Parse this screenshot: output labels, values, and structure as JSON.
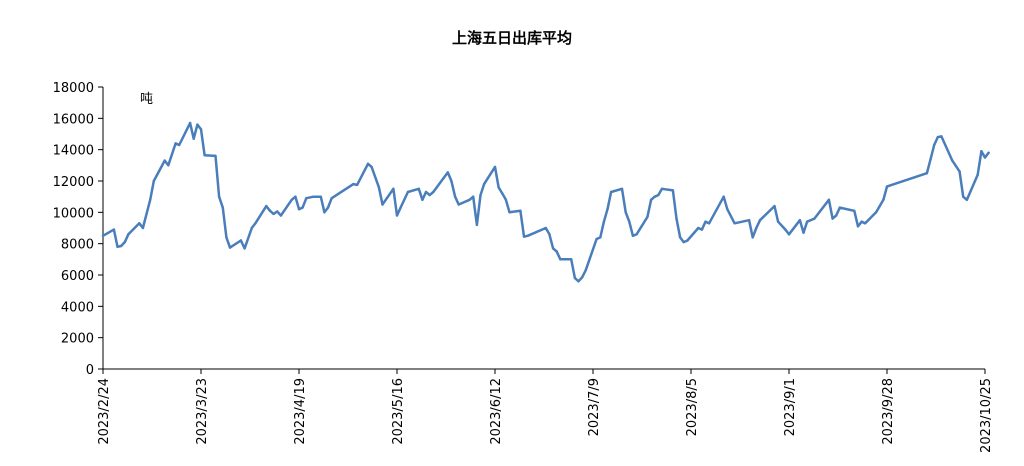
{
  "chart_data": {
    "type": "line",
    "title": "上海五日出库平均",
    "unit_label": "吨",
    "xlabel": "",
    "ylabel": "",
    "ylim": [
      0,
      18000
    ],
    "y_ticks": [
      "0",
      "2000",
      "4000",
      "6000",
      "8000",
      "10000",
      "12000",
      "14000",
      "16000",
      "18000"
    ],
    "x_range": [
      "2023/2/24",
      "2023/10/25"
    ],
    "x_ticks": [
      "2023/2/24",
      "2023/3/23",
      "2023/4/19",
      "2023/5/16",
      "2023/6/12",
      "2023/7/9",
      "2023/8/5",
      "2023/9/1",
      "2023/9/28",
      "2023/10/25"
    ],
    "grid": false,
    "legend": "none",
    "series_color": "#4a7ebb",
    "points": [
      [
        "2023/2/24",
        8500
      ],
      [
        "2023/2/27",
        8900
      ],
      [
        "2023/2/28",
        7800
      ],
      [
        "2023/3/1",
        7850
      ],
      [
        "2023/3/2",
        8100
      ],
      [
        "2023/3/3",
        8600
      ],
      [
        "2023/3/6",
        9300
      ],
      [
        "2023/3/7",
        9000
      ],
      [
        "2023/3/9",
        10800
      ],
      [
        "2023/3/10",
        12000
      ],
      [
        "2023/3/13",
        13300
      ],
      [
        "2023/3/14",
        13000
      ],
      [
        "2023/3/16",
        14400
      ],
      [
        "2023/3/17",
        14300
      ],
      [
        "2023/3/20",
        15700
      ],
      [
        "2023/3/21",
        14700
      ],
      [
        "2023/3/22",
        15600
      ],
      [
        "2023/3/23",
        15300
      ],
      [
        "2023/3/24",
        13650
      ],
      [
        "2023/3/27",
        13600
      ],
      [
        "2023/3/28",
        11000
      ],
      [
        "2023/3/29",
        10300
      ],
      [
        "2023/3/30",
        8400
      ],
      [
        "2023/3/31",
        7750
      ],
      [
        "2023/4/3",
        8200
      ],
      [
        "2023/4/4",
        7700
      ],
      [
        "2023/4/6",
        9000
      ],
      [
        "2023/4/7",
        9300
      ],
      [
        "2023/4/10",
        10400
      ],
      [
        "2023/4/11",
        10100
      ],
      [
        "2023/4/12",
        9900
      ],
      [
        "2023/4/13",
        10050
      ],
      [
        "2023/4/14",
        9800
      ],
      [
        "2023/4/17",
        10800
      ],
      [
        "2023/4/18",
        11000
      ],
      [
        "2023/4/19",
        10200
      ],
      [
        "2023/4/20",
        10300
      ],
      [
        "2023/4/21",
        10900
      ],
      [
        "2023/4/23",
        11000
      ],
      [
        "2023/4/25",
        11000
      ],
      [
        "2023/4/26",
        10000
      ],
      [
        "2023/4/27",
        10300
      ],
      [
        "2023/4/28",
        10900
      ],
      [
        "2023/5/4",
        11800
      ],
      [
        "2023/5/5",
        11750
      ],
      [
        "2023/5/8",
        13100
      ],
      [
        "2023/5/9",
        12900
      ],
      [
        "2023/5/11",
        11600
      ],
      [
        "2023/5/12",
        10500
      ],
      [
        "2023/5/15",
        11500
      ],
      [
        "2023/5/16",
        9800
      ],
      [
        "2023/5/17",
        10300
      ],
      [
        "2023/5/19",
        11300
      ],
      [
        "2023/5/22",
        11500
      ],
      [
        "2023/5/23",
        10800
      ],
      [
        "2023/5/24",
        11300
      ],
      [
        "2023/5/25",
        11100
      ],
      [
        "2023/5/26",
        11300
      ],
      [
        "2023/5/30",
        12550
      ],
      [
        "2023/5/31",
        12000
      ],
      [
        "2023/6/1",
        11000
      ],
      [
        "2023/6/2",
        10500
      ],
      [
        "2023/6/5",
        10800
      ],
      [
        "2023/6/6",
        11000
      ],
      [
        "2023/6/7",
        9200
      ],
      [
        "2023/6/8",
        11100
      ],
      [
        "2023/6/9",
        11800
      ],
      [
        "2023/6/12",
        12900
      ],
      [
        "2023/6/13",
        11600
      ],
      [
        "2023/6/14",
        11200
      ],
      [
        "2023/6/15",
        10800
      ],
      [
        "2023/6/16",
        10000
      ],
      [
        "2023/6/19",
        10100
      ],
      [
        "2023/6/20",
        8450
      ],
      [
        "2023/6/21",
        8500
      ],
      [
        "2023/6/26",
        9000
      ],
      [
        "2023/6/27",
        8600
      ],
      [
        "2023/6/28",
        7700
      ],
      [
        "2023/6/29",
        7500
      ],
      [
        "2023/6/30",
        7000
      ],
      [
        "2023/7/3",
        7000
      ],
      [
        "2023/7/4",
        5800
      ],
      [
        "2023/7/5",
        5600
      ],
      [
        "2023/7/6",
        5850
      ],
      [
        "2023/7/7",
        6300
      ],
      [
        "2023/7/10",
        8300
      ],
      [
        "2023/7/11",
        8400
      ],
      [
        "2023/7/12",
        9400
      ],
      [
        "2023/7/13",
        10200
      ],
      [
        "2023/7/14",
        11300
      ],
      [
        "2023/7/17",
        11500
      ],
      [
        "2023/7/18",
        10000
      ],
      [
        "2023/7/19",
        9400
      ],
      [
        "2023/7/20",
        8500
      ],
      [
        "2023/7/21",
        8600
      ],
      [
        "2023/7/24",
        9700
      ],
      [
        "2023/7/25",
        10800
      ],
      [
        "2023/7/26",
        11000
      ],
      [
        "2023/7/27",
        11100
      ],
      [
        "2023/7/28",
        11500
      ],
      [
        "2023/7/31",
        11400
      ],
      [
        "2023/8/1",
        9600
      ],
      [
        "2023/8/2",
        8400
      ],
      [
        "2023/8/3",
        8100
      ],
      [
        "2023/8/4",
        8200
      ],
      [
        "2023/8/7",
        9000
      ],
      [
        "2023/8/8",
        8900
      ],
      [
        "2023/8/9",
        9400
      ],
      [
        "2023/8/10",
        9300
      ],
      [
        "2023/8/14",
        11000
      ],
      [
        "2023/8/15",
        10200
      ],
      [
        "2023/8/17",
        9300
      ],
      [
        "2023/8/21",
        9500
      ],
      [
        "2023/8/22",
        8400
      ],
      [
        "2023/8/23",
        9000
      ],
      [
        "2023/8/24",
        9500
      ],
      [
        "2023/8/28",
        10400
      ],
      [
        "2023/8/29",
        9400
      ],
      [
        "2023/8/31",
        8900
      ],
      [
        "2023/9/1",
        8600
      ],
      [
        "2023/9/4",
        9500
      ],
      [
        "2023/9/5",
        8700
      ],
      [
        "2023/9/6",
        9400
      ],
      [
        "2023/9/8",
        9600
      ],
      [
        "2023/9/12",
        10800
      ],
      [
        "2023/9/13",
        9600
      ],
      [
        "2023/9/14",
        9800
      ],
      [
        "2023/9/15",
        10300
      ],
      [
        "2023/9/19",
        10100
      ],
      [
        "2023/9/20",
        9100
      ],
      [
        "2023/9/21",
        9400
      ],
      [
        "2023/9/22",
        9300
      ],
      [
        "2023/9/25",
        10000
      ],
      [
        "2023/9/26",
        10400
      ],
      [
        "2023/9/27",
        10800
      ],
      [
        "2023/9/28",
        11650
      ],
      [
        "2023/10/9",
        12500
      ],
      [
        "2023/10/10",
        13400
      ],
      [
        "2023/10/11",
        14300
      ],
      [
        "2023/10/12",
        14800
      ],
      [
        "2023/10/13",
        14850
      ],
      [
        "2023/10/16",
        13300
      ],
      [
        "2023/10/18",
        12600
      ],
      [
        "2023/10/19",
        11000
      ],
      [
        "2023/10/20",
        10800
      ],
      [
        "2023/10/23",
        12400
      ],
      [
        "2023/10/24",
        13900
      ],
      [
        "2023/10/25",
        13500
      ],
      [
        "2023/10/26",
        13800
      ]
    ]
  }
}
